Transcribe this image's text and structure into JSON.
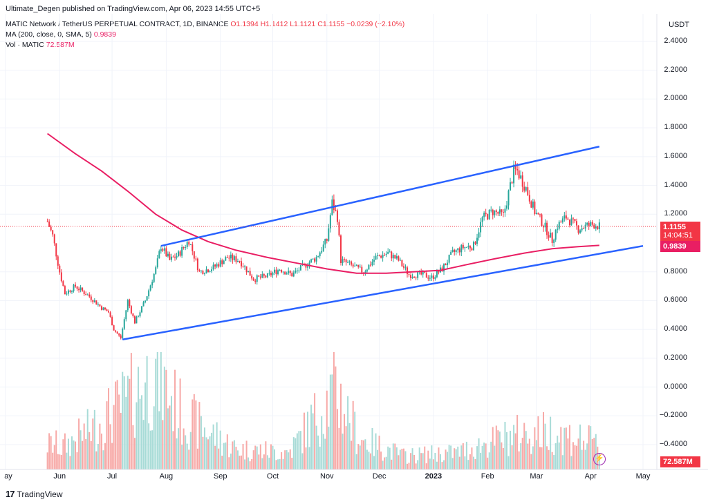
{
  "header": {
    "published": "Ultimate_Degen published on TradingView.com, Apr 06, 2023 14:55 UTC+5",
    "symbol": "MATIC Network / TetherUS PERPETUAL CONTRACT, 1D, BINANCE",
    "ohlc": "O1.1394  H1.1412  L1.1121  C1.1155  −0.0239 (−2.10%)",
    "ma_label": "MA (200, close, 0, SMA, 5)",
    "ma_value": "0.9839",
    "vol_label": "Vol · MATIC",
    "vol_value": "72.587M"
  },
  "axis": {
    "unit": "USDT",
    "y_ticks": [
      "2.4000",
      "2.2000",
      "2.0000",
      "1.8000",
      "1.6000",
      "1.4000",
      "1.2000",
      "0.8000",
      "0.6000",
      "0.4000",
      "0.2000",
      "0.0000",
      "−0.2000",
      "−0.4000"
    ],
    "x_ticks": [
      "ay",
      "Jun",
      "Jul",
      "Aug",
      "Sep",
      "Oct",
      "Nov",
      "Dec",
      "2023",
      "Feb",
      "Mar",
      "Apr",
      "May"
    ]
  },
  "tags": {
    "price": "1.1155",
    "countdown": "14:04:51",
    "ma": "0.9839",
    "volume": "72.587M"
  },
  "footer": {
    "brand": "TradingView"
  },
  "colors": {
    "up": "#26a69a",
    "down": "#f23645",
    "ma": "#e91e63",
    "channel": "#2962ff"
  },
  "chart_data": {
    "type": "candlestick",
    "symbol": "MATICUSDT.P",
    "interval": "1D",
    "y_ticks": [
      2.4,
      2.2,
      2.0,
      1.8,
      1.6,
      1.4,
      1.2,
      0.8,
      0.6,
      0.4,
      0.2,
      0.0,
      -0.2,
      -0.4
    ],
    "last_close": 1.1155,
    "ma200_last": 0.9839,
    "price_path": [
      [
        "2022-05-25",
        1.15
      ],
      [
        "2022-05-28",
        1.05
      ],
      [
        "2022-06-01",
        0.8
      ],
      [
        "2022-06-04",
        0.65
      ],
      [
        "2022-06-10",
        0.7
      ],
      [
        "2022-06-18",
        0.63
      ],
      [
        "2022-06-25",
        0.55
      ],
      [
        "2022-06-29",
        0.52
      ],
      [
        "2022-07-02",
        0.4
      ],
      [
        "2022-07-06",
        0.34
      ],
      [
        "2022-07-10",
        0.6
      ],
      [
        "2022-07-14",
        0.45
      ],
      [
        "2022-07-20",
        0.6
      ],
      [
        "2022-07-26",
        0.82
      ],
      [
        "2022-07-29",
        0.98
      ],
      [
        "2022-08-03",
        0.88
      ],
      [
        "2022-08-08",
        0.92
      ],
      [
        "2022-08-14",
        1.02
      ],
      [
        "2022-08-20",
        0.8
      ],
      [
        "2022-08-28",
        0.83
      ],
      [
        "2022-09-05",
        0.9
      ],
      [
        "2022-09-12",
        0.88
      ],
      [
        "2022-09-20",
        0.75
      ],
      [
        "2022-09-28",
        0.77
      ],
      [
        "2022-10-05",
        0.82
      ],
      [
        "2022-10-12",
        0.78
      ],
      [
        "2022-10-20",
        0.85
      ],
      [
        "2022-10-26",
        0.9
      ],
      [
        "2022-11-01",
        1.02
      ],
      [
        "2022-11-04",
        1.28
      ],
      [
        "2022-11-07",
        1.18
      ],
      [
        "2022-11-09",
        0.88
      ],
      [
        "2022-11-14",
        0.85
      ],
      [
        "2022-11-22",
        0.8
      ],
      [
        "2022-11-29",
        0.9
      ],
      [
        "2022-12-06",
        0.93
      ],
      [
        "2022-12-12",
        0.88
      ],
      [
        "2022-12-18",
        0.78
      ],
      [
        "2022-12-26",
        0.78
      ],
      [
        "2022-12-31",
        0.76
      ],
      [
        "2023-01-06",
        0.82
      ],
      [
        "2023-01-12",
        0.93
      ],
      [
        "2023-01-18",
        0.97
      ],
      [
        "2023-01-24",
        0.98
      ],
      [
        "2023-01-29",
        1.17
      ],
      [
        "2023-02-04",
        1.22
      ],
      [
        "2023-02-10",
        1.19
      ],
      [
        "2023-02-16",
        1.5
      ],
      [
        "2023-02-18",
        1.5
      ],
      [
        "2023-02-23",
        1.38
      ],
      [
        "2023-02-28",
        1.22
      ],
      [
        "2023-03-05",
        1.13
      ],
      [
        "2023-03-10",
        1.02
      ],
      [
        "2023-03-13",
        1.12
      ],
      [
        "2023-03-18",
        1.18
      ],
      [
        "2023-03-25",
        1.1
      ],
      [
        "2023-03-30",
        1.12
      ],
      [
        "2023-04-03",
        1.13
      ],
      [
        "2023-04-06",
        1.1155
      ]
    ],
    "ma200_path": [
      [
        "2022-05-25",
        1.76
      ],
      [
        "2022-06-10",
        1.62
      ],
      [
        "2022-06-25",
        1.5
      ],
      [
        "2022-07-10",
        1.36
      ],
      [
        "2022-07-26",
        1.2
      ],
      [
        "2022-08-10",
        1.09
      ],
      [
        "2022-08-25",
        1.01
      ],
      [
        "2022-09-10",
        0.95
      ],
      [
        "2022-09-28",
        0.9
      ],
      [
        "2022-10-15",
        0.86
      ],
      [
        "2022-11-01",
        0.82
      ],
      [
        "2022-11-18",
        0.79
      ],
      [
        "2022-12-05",
        0.79
      ],
      [
        "2022-12-20",
        0.8
      ],
      [
        "2023-01-05",
        0.81
      ],
      [
        "2023-01-20",
        0.85
      ],
      [
        "2023-02-05",
        0.89
      ],
      [
        "2023-02-22",
        0.93
      ],
      [
        "2023-03-10",
        0.96
      ],
      [
        "2023-03-25",
        0.975
      ],
      [
        "2023-04-06",
        0.9839
      ]
    ],
    "channel_upper": [
      [
        "2022-07-29",
        0.98
      ],
      [
        "2023-04-06",
        1.67
      ]
    ],
    "channel_lower": [
      [
        "2022-07-07",
        0.33
      ],
      [
        "2023-05-01",
        0.98
      ]
    ],
    "volume_path_millions": [
      [
        "2022-06",
        60
      ],
      [
        "2022-06-20",
        120
      ],
      [
        "2022-07-05",
        180
      ],
      [
        "2022-07-26",
        280
      ],
      [
        "2022-08-10",
        160
      ],
      [
        "2022-09-10",
        60
      ],
      [
        "2022-10-10",
        50
      ],
      [
        "2022-11-06",
        230
      ],
      [
        "2022-11-20",
        90
      ],
      [
        "2022-12-15",
        40
      ],
      [
        "2023-01-15",
        50
      ],
      [
        "2023-02-16",
        100
      ],
      [
        "2023-03-10",
        110
      ],
      [
        "2023-04-06",
        72.587
      ]
    ]
  }
}
